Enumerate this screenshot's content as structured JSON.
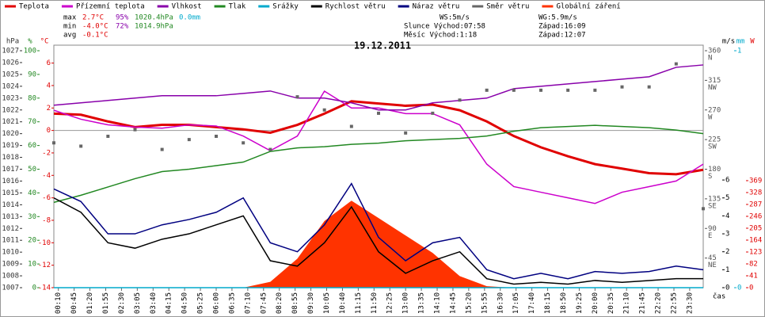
{
  "chart_data": {
    "type": "line",
    "title": "19.12.2011",
    "xlabel": "čas",
    "stats": [
      [
        "max",
        "2.7°C",
        "95%",
        "1020.4hPa",
        "0.0mm"
      ],
      [
        "min",
        "-4.0°C",
        "72%",
        "1014.9hPa"
      ],
      [
        "avg",
        "-0.1°C"
      ]
    ],
    "astro": [
      [
        "WS:5m/s",
        "WG:5.9m/s"
      ],
      [
        "Slunce Východ:07:58",
        "Západ:16:09"
      ],
      [
        "Měsíc Východ:1:18",
        "Západ:12:07"
      ]
    ],
    "xlim": [
      0,
      24
    ],
    "xticks": [
      {
        "value": 0.167,
        "label": "00:10"
      },
      {
        "value": 0.75,
        "label": "00:45"
      },
      {
        "value": 1.333,
        "label": "01:20"
      },
      {
        "value": 1.917,
        "label": "01:55"
      },
      {
        "value": 2.5,
        "label": "02:30"
      },
      {
        "value": 3.083,
        "label": "03:05"
      },
      {
        "value": 3.667,
        "label": "03:40"
      },
      {
        "value": 4.25,
        "label": "04:15"
      },
      {
        "value": 4.833,
        "label": "04:50"
      },
      {
        "value": 5.417,
        "label": "05:25"
      },
      {
        "value": 6,
        "label": "06:00"
      },
      {
        "value": 6.583,
        "label": "06:35"
      },
      {
        "value": 7.167,
        "label": "07:10"
      },
      {
        "value": 7.75,
        "label": "07:45"
      },
      {
        "value": 8.333,
        "label": "08:20"
      },
      {
        "value": 8.917,
        "label": "08:55"
      },
      {
        "value": 9.5,
        "label": "09:30"
      },
      {
        "value": 10.083,
        "label": "10:05"
      },
      {
        "value": 10.667,
        "label": "10:40"
      },
      {
        "value": 11.25,
        "label": "11:15"
      },
      {
        "value": 11.833,
        "label": "11:50"
      },
      {
        "value": 12.417,
        "label": "12:25"
      },
      {
        "value": 13,
        "label": "13:00"
      },
      {
        "value": 13.583,
        "label": "13:35"
      },
      {
        "value": 14.167,
        "label": "14:10"
      },
      {
        "value": 14.75,
        "label": "14:45"
      },
      {
        "value": 15.333,
        "label": "15:20"
      },
      {
        "value": 15.917,
        "label": "15:55"
      },
      {
        "value": 16.5,
        "label": "16:30"
      },
      {
        "value": 17.083,
        "label": "17:05"
      },
      {
        "value": 17.667,
        "label": "17:40"
      },
      {
        "value": 18.25,
        "label": "18:15"
      },
      {
        "value": 18.833,
        "label": "18:50"
      },
      {
        "value": 19.417,
        "label": "19:25"
      },
      {
        "value": 20,
        "label": "20:00"
      },
      {
        "value": 20.583,
        "label": "20:35"
      },
      {
        "value": 21.167,
        "label": "21:10"
      },
      {
        "value": 21.75,
        "label": "21:45"
      },
      {
        "value": 22.333,
        "label": "22:20"
      },
      {
        "value": 22.917,
        "label": "22:55"
      },
      {
        "value": 23.5,
        "label": "23:30"
      }
    ],
    "axes": [
      {
        "unit": "hPa",
        "color": "#333333",
        "lim": [
          1007,
          1027
        ],
        "ticks": [
          1007,
          1008,
          1009,
          1010,
          1011,
          1012,
          1013,
          1014,
          1015,
          1016,
          1017,
          1018,
          1019,
          1020,
          1021,
          1022,
          1023,
          1024,
          1025,
          1026,
          1027
        ]
      },
      {
        "unit": "%",
        "color": "#228822",
        "lim": [
          0,
          100
        ],
        "ticks": [
          0,
          10,
          20,
          30,
          40,
          50,
          60,
          70,
          80,
          90,
          100
        ]
      },
      {
        "unit": "°C",
        "color": "#e00000",
        "lim": [
          -14,
          7.1
        ],
        "ticks": [
          -14,
          -12,
          -10,
          -8,
          -6,
          -4,
          -2,
          0,
          2,
          4,
          6
        ]
      },
      {
        "unit": "",
        "color": "#555555",
        "lim": [
          0,
          360
        ],
        "ticks": [
          45,
          90,
          135,
          180,
          225,
          270,
          315,
          360
        ],
        "compass": [
          "NE",
          "E",
          "SE",
          "S",
          "SW",
          "W",
          "NW",
          "N"
        ]
      },
      {
        "unit": "m/s",
        "color": "#000000",
        "lim": [
          0,
          13.2
        ],
        "ticks": [
          0,
          1,
          2,
          3,
          4,
          5,
          6
        ]
      },
      {
        "unit": "mm",
        "color": "#00aacc",
        "lim": [
          0,
          1
        ],
        "ticks": [
          0,
          1
        ]
      },
      {
        "unit": "W",
        "color": "#e00000",
        "lim": [
          0,
          817
        ],
        "ticks": [
          0,
          41,
          82,
          123,
          164,
          205,
          246,
          287,
          328,
          369
        ]
      }
    ],
    "x": [
      0,
      1,
      2,
      3,
      4,
      5,
      6,
      7,
      8,
      9,
      10,
      11,
      12,
      13,
      14,
      15,
      16,
      17,
      18,
      19,
      20,
      21,
      22,
      23,
      24
    ],
    "series": [
      {
        "name": "Globální záření",
        "color": "#ff3300",
        "axis": 6,
        "kind": "area",
        "values": [
          0,
          0,
          0,
          0,
          0,
          0,
          0,
          0,
          20,
          100,
          230,
          300,
          240,
          180,
          120,
          40,
          5,
          0,
          0,
          0,
          0,
          0,
          0,
          0,
          0
        ]
      },
      {
        "name": "Teplota",
        "color": "#e00000",
        "axis": 2,
        "values": [
          1.5,
          1.4,
          0.8,
          0.3,
          0.5,
          0.5,
          0.3,
          0.1,
          -0.2,
          0.5,
          1.5,
          2.6,
          2.4,
          2.2,
          2.3,
          1.8,
          0.8,
          -0.5,
          -1.5,
          -2.3,
          -3,
          -3.4,
          -3.8,
          -3.9,
          -3.5
        ]
      },
      {
        "name": "Přízemní teplota",
        "color": "#cc00cc",
        "axis": 2,
        "values": [
          1.8,
          1,
          0.5,
          0.3,
          0.2,
          0.5,
          0.4,
          -0.5,
          -1.8,
          -0.5,
          3.5,
          2,
          2,
          1.5,
          1.5,
          0.5,
          -3,
          -5,
          -5.5,
          -6,
          -6.5,
          -5.5,
          -5,
          -4.5,
          -3
        ]
      },
      {
        "name": "Vlhkost",
        "color": "#8800aa",
        "axis": 1,
        "values": [
          77,
          78,
          79,
          80,
          81,
          81,
          81,
          82,
          83,
          80,
          80,
          78,
          75,
          75,
          78,
          79,
          80,
          84,
          85,
          86,
          87,
          88,
          89,
          93,
          94
        ]
      },
      {
        "name": "Tlak",
        "color": "#228822",
        "axis": 0,
        "values": [
          1014.2,
          1014.8,
          1015.5,
          1016.2,
          1016.8,
          1017,
          1017.3,
          1017.6,
          1018.5,
          1018.8,
          1018.9,
          1019.1,
          1019.2,
          1019.4,
          1019.5,
          1019.6,
          1019.8,
          1020.2,
          1020.5,
          1020.6,
          1020.7,
          1020.6,
          1020.5,
          1020.3,
          1020
        ]
      },
      {
        "name": "Srážky",
        "color": "#00aacc",
        "axis": 5,
        "values": [
          0,
          0,
          0,
          0,
          0,
          0,
          0,
          0,
          0,
          0,
          0,
          0,
          0,
          0,
          0,
          0,
          0,
          0,
          0,
          0,
          0,
          0,
          0,
          0,
          0
        ]
      },
      {
        "name": "Rychlost větru",
        "color": "#000000",
        "axis": 4,
        "values": [
          5,
          4.2,
          2.5,
          2.2,
          2.7,
          3,
          3.5,
          4,
          1.5,
          1.2,
          2.5,
          4.5,
          2,
          0.8,
          1.5,
          2,
          0.5,
          0.2,
          0.3,
          0.2,
          0.4,
          0.3,
          0.4,
          0.5,
          0.5
        ]
      },
      {
        "name": "Náraz větru",
        "color": "#000080",
        "axis": 4,
        "values": [
          5.5,
          4.8,
          3,
          3,
          3.5,
          3.8,
          4.2,
          5,
          2.5,
          2,
          3.5,
          5.8,
          2.8,
          1.5,
          2.5,
          2.8,
          1,
          0.5,
          0.8,
          0.5,
          0.9,
          0.8,
          0.9,
          1.2,
          1
        ]
      },
      {
        "name": "Směr větru",
        "color": "#666666",
        "axis": 3,
        "kind": "scatter",
        "values": [
          220,
          215,
          230,
          240,
          210,
          225,
          230,
          220,
          210,
          290,
          270,
          245,
          265,
          235,
          265,
          285,
          300,
          300,
          300,
          300,
          300,
          305,
          305,
          340,
          120
        ]
      }
    ]
  }
}
